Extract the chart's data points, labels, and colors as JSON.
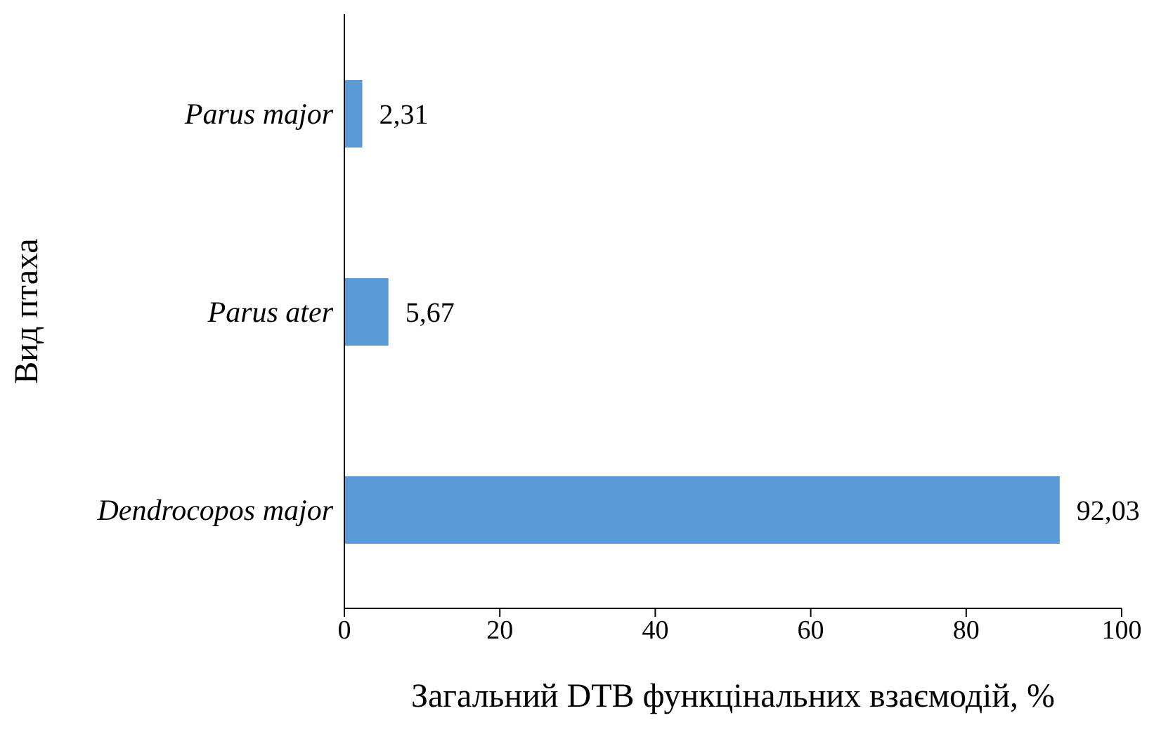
{
  "chart_data": {
    "type": "bar",
    "orientation": "horizontal",
    "categories": [
      "Parus major",
      "Parus ater",
      "Dendrocopos major"
    ],
    "values": [
      2.31,
      5.67,
      92.03
    ],
    "value_labels": [
      "2,31",
      "5,67",
      "92,03"
    ],
    "color": "#5b9bd5",
    "xlim": [
      0,
      100
    ],
    "xticks": [
      0,
      20,
      40,
      60,
      80,
      100
    ],
    "xlabel": "Загальний DTB функцінальних взаємодій, %",
    "ylabel": "Вид птаха",
    "grid": false,
    "legend": false
  }
}
